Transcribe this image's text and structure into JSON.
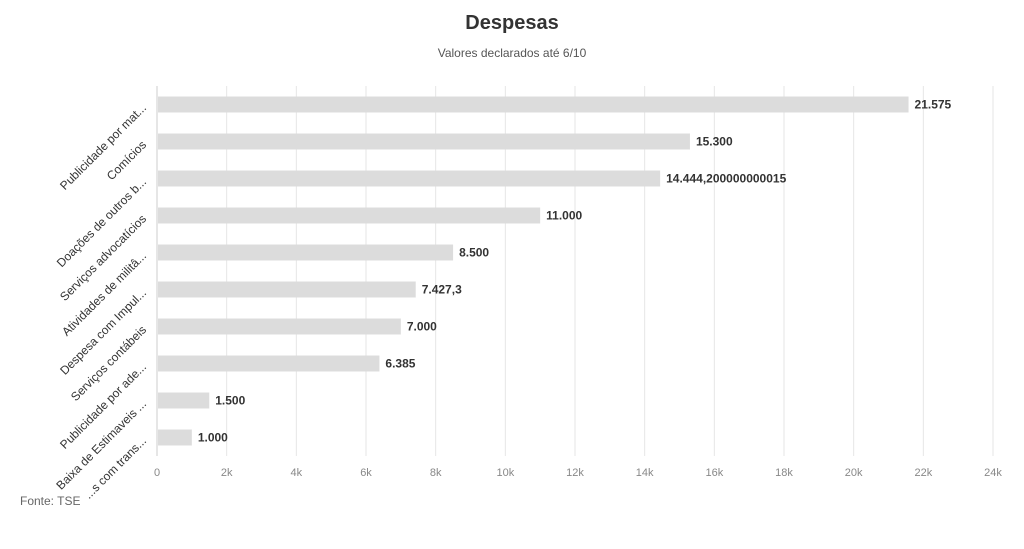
{
  "title": "Despesas",
  "subtitle": "Valores declarados até 6/10",
  "source": "Fonte: TSE",
  "chart_data": {
    "type": "bar",
    "orientation": "horizontal",
    "categories": [
      "Publicidade por mat...",
      "Comícios",
      "Doações de outros b...",
      "Serviços advocatícios",
      "Atividades de militâ...",
      "Despesa com Impul...",
      "Serviços contábeis",
      "Publicidade por ade...",
      "Baixa de Estimaveis ...",
      "...s com trans..."
    ],
    "values": [
      21575,
      15300,
      14444.200000000015,
      11000,
      8500,
      7427.3,
      7000,
      6385,
      1500,
      1000
    ],
    "value_labels": [
      "21.575",
      "15.300",
      "14.444,200000000015",
      "11.000",
      "8.500",
      "7.427,3",
      "7.000",
      "6.385",
      "1.500",
      "1.000"
    ],
    "xlim": [
      0,
      24000
    ],
    "x_ticks": [
      0,
      2000,
      4000,
      6000,
      8000,
      10000,
      12000,
      14000,
      16000,
      18000,
      20000,
      22000,
      24000
    ],
    "x_tick_labels": [
      "0",
      "2k",
      "4k",
      "6k",
      "8k",
      "10k",
      "12k",
      "14k",
      "16k",
      "18k",
      "20k",
      "22k",
      "24k"
    ],
    "grid": true,
    "bar_color": "#dcdcdc",
    "grid_color": "#e6e6e6"
  }
}
